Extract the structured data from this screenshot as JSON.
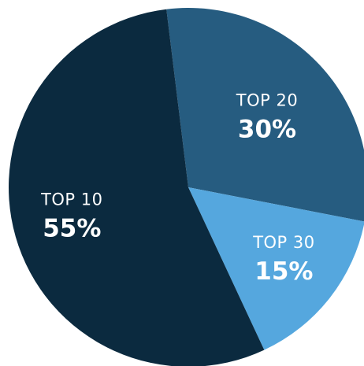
{
  "chart_data": {
    "type": "pie",
    "title": "",
    "slices": [
      {
        "label": "TOP 20",
        "value": 30,
        "value_label": "30%",
        "color": "#265C80"
      },
      {
        "label": "TOP 30",
        "value": 15,
        "value_label": "15%",
        "color": "#55A7DE"
      },
      {
        "label": "TOP 10",
        "value": 55,
        "value_label": "55%",
        "color": "#0B2A3F"
      }
    ],
    "legend": "none"
  }
}
